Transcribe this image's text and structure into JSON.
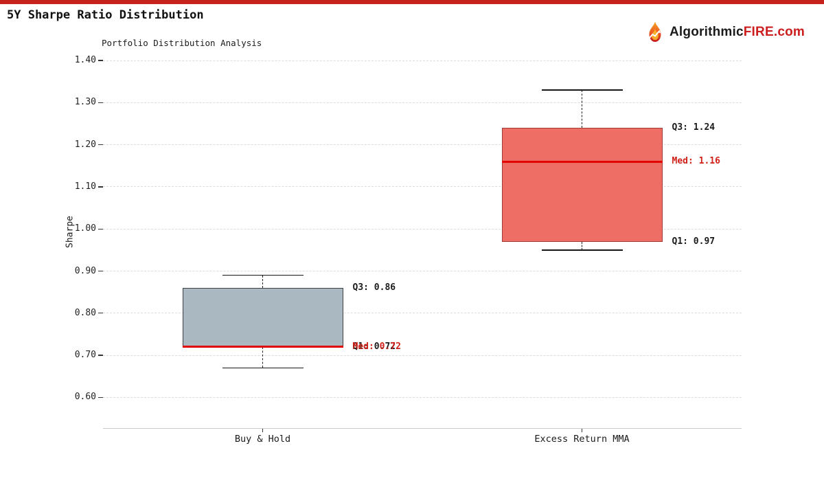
{
  "header": {
    "top_bar_color": "#c5231b",
    "title": "5Y Sharpe Ratio Distribution",
    "logo": {
      "brand_dark": "Algorithmic",
      "brand_accent": "FIRE",
      "brand_tld": ".com",
      "accent_color": "#cc1e1e"
    }
  },
  "chart_data": {
    "type": "boxplot",
    "title": "Portfolio Distribution Analysis",
    "ylabel": "Sharpe",
    "yticks": [
      {
        "value": 1.4,
        "label": "1.40"
      },
      {
        "value": 1.3,
        "label": "1.30"
      },
      {
        "value": 1.2,
        "label": "1.20"
      },
      {
        "value": 1.1,
        "label": "1.10"
      },
      {
        "value": 1.0,
        "label": "1.00"
      },
      {
        "value": 0.9,
        "label": "0.90"
      },
      {
        "value": 0.8,
        "label": "0.80"
      },
      {
        "value": 0.7,
        "label": "0.70"
      },
      {
        "value": 0.6,
        "label": "0.60"
      }
    ],
    "ylim": [
      0.53,
      1.41
    ],
    "grid": {
      "show": true,
      "style": "dashed",
      "color": "#dcdcdc"
    },
    "legend": "none",
    "categories": [
      "Buy & Hold",
      "Excess Return MMA"
    ],
    "series": [
      {
        "name": "Buy & Hold",
        "whisker_low": 0.67,
        "q1": 0.72,
        "median": 0.72,
        "q3": 0.86,
        "whisker_high": 0.89,
        "box_fill": "#aab9c1",
        "box_edge": "#3c4043",
        "labels": {
          "q3": "Q3: 0.86",
          "median": "Med: 0.72",
          "q1": "Q1: 0.72"
        }
      },
      {
        "name": "Excess Return MMA",
        "whisker_low": 0.95,
        "q1": 0.97,
        "median": 1.16,
        "q3": 1.24,
        "whisker_high": 1.33,
        "box_fill": "#ee6e66",
        "box_edge": "#a03b33",
        "labels": {
          "q3": "Q3: 1.24",
          "median": "Med: 1.16",
          "q1": "Q1: 0.97"
        }
      }
    ],
    "median_color": "#e10600",
    "annotation_color_default": "#1a1a1a",
    "annotation_color_median": "#d02018"
  }
}
